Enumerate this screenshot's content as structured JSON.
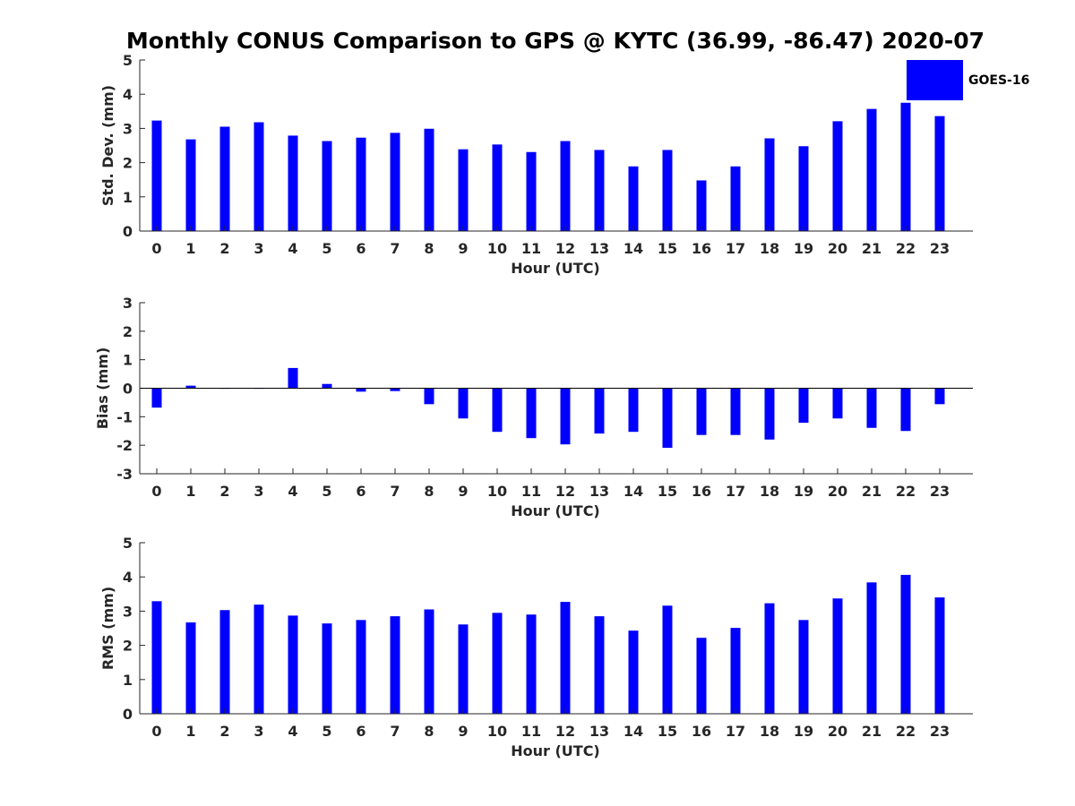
{
  "title": "Monthly CONUS Comparison to GPS @ KYTC (36.99, -86.47) 2020-07",
  "legend": {
    "label": "GOES-16"
  },
  "colors": {
    "bar": "#0000ff",
    "axis": "#262626",
    "title": "#000000"
  },
  "chart_data": [
    {
      "type": "bar",
      "name": "std-dev",
      "series_name": "GOES-16",
      "categories": [
        "0",
        "1",
        "2",
        "3",
        "4",
        "5",
        "6",
        "7",
        "8",
        "9",
        "10",
        "11",
        "12",
        "13",
        "14",
        "15",
        "16",
        "17",
        "18",
        "19",
        "20",
        "21",
        "22",
        "23"
      ],
      "values": [
        3.23,
        2.68,
        3.05,
        3.18,
        2.79,
        2.63,
        2.73,
        2.87,
        2.99,
        2.39,
        2.53,
        2.31,
        2.63,
        2.37,
        1.89,
        2.37,
        1.48,
        1.89,
        2.71,
        2.48,
        3.21,
        3.57,
        3.75,
        3.36
      ],
      "xlabel": "Hour (UTC)",
      "ylabel": "Std. Dev. (mm)",
      "ylim": [
        0,
        5
      ],
      "yticks": [
        "0",
        "1",
        "2",
        "3",
        "4",
        "5"
      ]
    },
    {
      "type": "bar",
      "name": "bias",
      "series_name": "GOES-16",
      "categories": [
        "0",
        "1",
        "2",
        "3",
        "4",
        "5",
        "6",
        "7",
        "8",
        "9",
        "10",
        "11",
        "12",
        "13",
        "14",
        "15",
        "16",
        "17",
        "18",
        "19",
        "20",
        "21",
        "22",
        "23"
      ],
      "values": [
        -0.68,
        0.09,
        -0.02,
        -0.02,
        0.71,
        0.15,
        -0.12,
        -0.1,
        -0.56,
        -1.06,
        -1.53,
        -1.75,
        -1.97,
        -1.59,
        -1.53,
        -2.09,
        -1.64,
        -1.64,
        -1.8,
        -1.21,
        -1.06,
        -1.39,
        -1.5,
        -0.56
      ],
      "xlabel": "Hour (UTC)",
      "ylabel": "Bias (mm)",
      "ylim": [
        -3,
        3
      ],
      "yticks": [
        "-3",
        "-2",
        "-1",
        "0",
        "1",
        "2",
        "3"
      ]
    },
    {
      "type": "bar",
      "name": "rms",
      "series_name": "GOES-16",
      "categories": [
        "0",
        "1",
        "2",
        "3",
        "4",
        "5",
        "6",
        "7",
        "8",
        "9",
        "10",
        "11",
        "12",
        "13",
        "14",
        "15",
        "16",
        "17",
        "18",
        "19",
        "20",
        "21",
        "22",
        "23"
      ],
      "values": [
        3.29,
        2.67,
        3.03,
        3.19,
        2.87,
        2.64,
        2.74,
        2.85,
        3.05,
        2.61,
        2.95,
        2.9,
        3.27,
        2.85,
        2.43,
        3.16,
        2.22,
        2.51,
        3.23,
        2.74,
        3.37,
        3.84,
        4.06,
        3.4
      ],
      "xlabel": "Hour (UTC)",
      "ylabel": "RMS (mm)",
      "ylim": [
        0,
        5
      ],
      "yticks": [
        "0",
        "1",
        "2",
        "3",
        "4",
        "5"
      ]
    }
  ]
}
